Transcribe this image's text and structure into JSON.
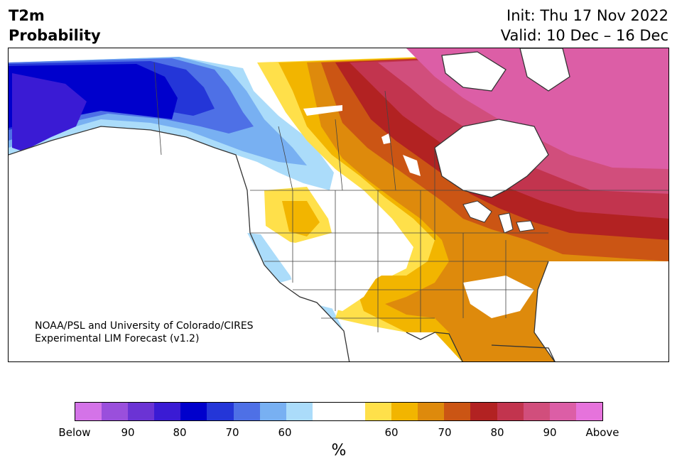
{
  "header": {
    "variable": "T2m",
    "field": "Probability",
    "init": "Init: Thu 17 Nov 2022",
    "valid": "Valid: 10 Dec – 16 Dec"
  },
  "credit": {
    "line1": "NOAA/PSL and University of Colorado/CIRES",
    "line2": "Experimental LIM Forecast (v1.2)"
  },
  "colorbar": {
    "units": "%",
    "colors": [
      "#d473e8",
      "#9a4fdc",
      "#6b33d4",
      "#3a1bd4",
      "#0000cc",
      "#2436d8",
      "#4e70e6",
      "#78b0f2",
      "#abdcfa",
      "#ffffff",
      "#ffffff",
      "#ffe04a",
      "#f2b500",
      "#de8a0c",
      "#cb5514",
      "#b22222",
      "#c2344e",
      "#d14e7c",
      "#dc5ea6",
      "#e673dc"
    ],
    "ticks": [
      {
        "label": "Below"
      },
      {
        "label": "90"
      },
      {
        "label": "80"
      },
      {
        "label": "70"
      },
      {
        "label": "60"
      },
      {
        "label": "60"
      },
      {
        "label": "70"
      },
      {
        "label": "80"
      },
      {
        "label": "90"
      },
      {
        "label": "Above"
      }
    ]
  }
}
